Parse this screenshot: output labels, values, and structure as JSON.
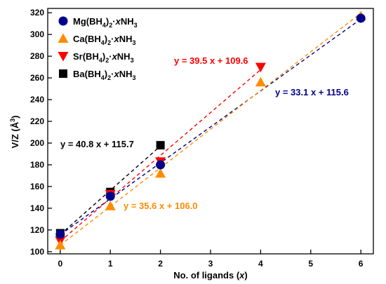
{
  "chart_data": {
    "type": "scatter",
    "title": "",
    "xlabel": "No. of ligands (x)",
    "ylabel": "V/Z (Å³)",
    "xlim": [
      -0.25,
      6.25
    ],
    "ylim": [
      98,
      324
    ],
    "xticks": [
      0,
      1,
      2,
      3,
      4,
      5,
      6
    ],
    "yticks": [
      100,
      120,
      140,
      160,
      180,
      200,
      220,
      240,
      260,
      280,
      300,
      320
    ],
    "legend_position": "top-left",
    "grid": false,
    "series": [
      {
        "name": "Mg(BH4)2·xNH3",
        "marker": "circle",
        "color": "#00008b",
        "x": [
          0,
          1,
          2,
          6
        ],
        "y": [
          116,
          151,
          180,
          315
        ],
        "fit": {
          "slope": 33.1,
          "intercept": 115.6,
          "label": "y = 33.1 x + 115.6"
        }
      },
      {
        "name": "Ca(BH4)2·xNH3",
        "marker": "triangle-up",
        "color": "#ff8c00",
        "x": [
          0,
          1,
          2,
          4,
          6
        ],
        "y": [
          106,
          142,
          172,
          256,
          317
        ],
        "fit": {
          "slope": 35.6,
          "intercept": 106.0,
          "label": "y = 35.6 x + 106.0"
        }
      },
      {
        "name": "Sr(BH4)2·xNH3",
        "marker": "triangle-down",
        "color": "#ff0000",
        "x": [
          0,
          1,
          2,
          4
        ],
        "y": [
          110,
          153,
          183,
          270
        ],
        "fit": {
          "slope": 39.5,
          "intercept": 109.6,
          "label": "y = 39.5 x + 109.6"
        }
      },
      {
        "name": "Ba(BH4)2·xNH3",
        "marker": "square",
        "color": "#000000",
        "x": [
          0,
          1,
          2
        ],
        "y": [
          117,
          155,
          198
        ],
        "fit": {
          "slope": 40.8,
          "intercept": 115.7,
          "label": "y = 40.8 x + 115.7"
        }
      }
    ]
  }
}
